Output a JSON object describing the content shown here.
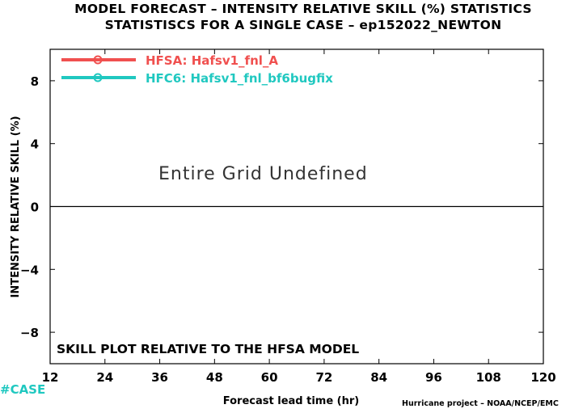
{
  "chart_data": {
    "type": "line",
    "title": "MODEL FORECAST – INTENSITY RELATIVE SKILL (%) STATISTICS",
    "subtitle": "STATISTISCS FOR A SINGLE CASE – ep152022_NEWTON",
    "xlabel": "Forecast lead time (hr)",
    "ylabel": "INTENSITY RELATIVE SKILL (%)",
    "x_ticks": [
      12,
      24,
      36,
      48,
      60,
      72,
      84,
      96,
      108,
      120
    ],
    "y_ticks": [
      -8,
      -4,
      0,
      4,
      8
    ],
    "y_tick_labels": [
      "−8",
      "−4",
      "0",
      "4",
      "8"
    ],
    "xlim": [
      12,
      120
    ],
    "ylim": [
      -10,
      10
    ],
    "zero_line": 0,
    "grid": false,
    "legend_position": "top-left",
    "series": [
      {
        "name": "HFSA: Hafsv1_fnl_A",
        "color": "#f0504f",
        "values": []
      },
      {
        "name": "HFC6: Hafsv1_fnl_bf6bugfix",
        "color": "#20c8c0",
        "values": []
      }
    ],
    "message": "Entire Grid Undefined",
    "note": "SKILL PLOT RELATIVE TO THE HFSA MODEL",
    "case_label": "#CASE",
    "credit": "Hurricane project – NOAA/NCEP/EMC"
  }
}
